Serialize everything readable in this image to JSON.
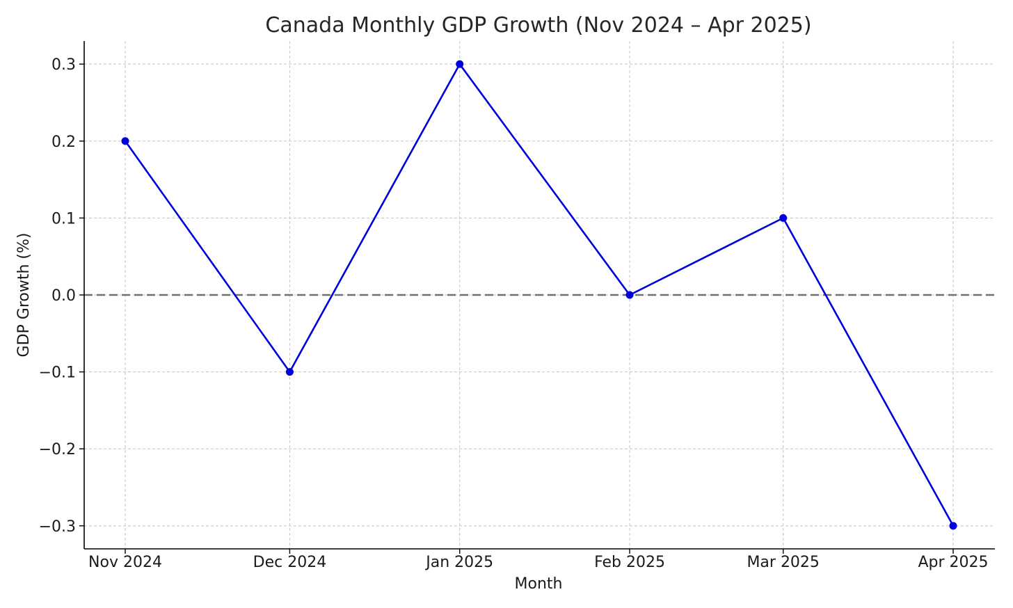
{
  "chart_data": {
    "type": "line",
    "title": "Canada Monthly GDP Growth (Nov 2024 – Apr 2025)",
    "xlabel": "Month",
    "ylabel": "GDP Growth (%)",
    "categories": [
      "Nov 2024",
      "Dec 2024",
      "Jan 2025",
      "Feb 2025",
      "Mar 2025",
      "Apr 2025"
    ],
    "x": [
      "2024-11-01",
      "2024-12-01",
      "2025-01-01",
      "2025-02-01",
      "2025-03-01",
      "2025-04-01"
    ],
    "values": [
      0.2,
      -0.1,
      0.3,
      0.0,
      0.1,
      -0.3
    ],
    "ylim": [
      -0.33,
      0.33
    ],
    "yticks": [
      -0.3,
      -0.2,
      -0.1,
      0.0,
      0.1,
      0.2,
      0.3
    ],
    "ytick_labels": [
      "−0.3",
      "−0.2",
      "−0.1",
      "0.0",
      "0.1",
      "0.2",
      "0.3"
    ],
    "reference_line": {
      "y": 0.0,
      "style": "dashed",
      "color": "#707070"
    },
    "grid": true,
    "marker": "circle",
    "color": "#0000dd"
  }
}
